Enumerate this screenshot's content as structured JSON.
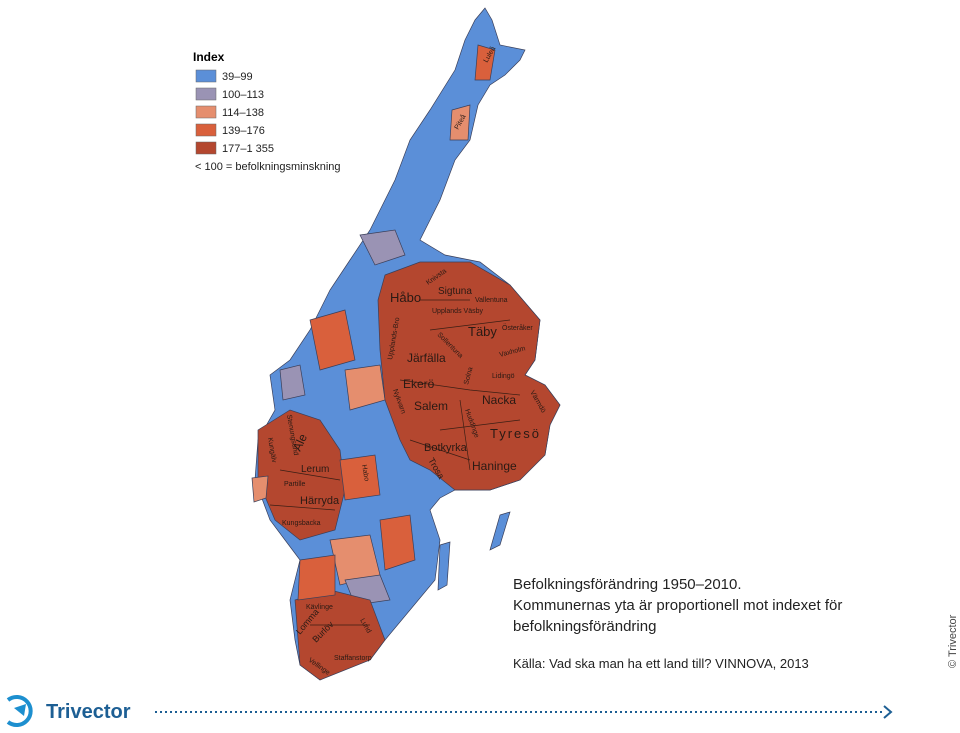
{
  "legend": {
    "title": "Index",
    "items": [
      {
        "label": "39–99",
        "color": "#5b8fd8"
      },
      {
        "label": "100–113",
        "color": "#9a93b4"
      },
      {
        "label": "114–138",
        "color": "#e58e6e"
      },
      {
        "label": "139–176",
        "color": "#d9603c"
      },
      {
        "label": "177–1 355",
        "color": "#b4472f"
      }
    ],
    "note": "< 100 = befolkningsminskning"
  },
  "map": {
    "labels": [
      "Luleå",
      "Piteå",
      "Knivsta",
      "Håbo",
      "Sigtuna",
      "Vallentuna",
      "Upplands Väsby",
      "Täby",
      "Österåker",
      "Upplands-Bro",
      "Sollentuna",
      "Järfälla",
      "Vaxholm",
      "Solna",
      "Lidingö",
      "Ekerö",
      "Värmdö",
      "Nacka",
      "Salem",
      "Nykvarn",
      "Huddinge",
      "Tyresö",
      "Botkyrka",
      "Haninge",
      "Trosa",
      "Stenungsund",
      "Kungälv",
      "Ale",
      "Lerum",
      "Partille",
      "Härryda",
      "Kungsbacka",
      "Habo",
      "Kävlinge",
      "Lomma",
      "Burlöv",
      "Lund",
      "Staffanstorp",
      "Vellinge"
    ]
  },
  "caption": {
    "lines": [
      "Befolkningsförändring 1950–2010.",
      "Kommunernas yta är proportionell mot indexet för",
      "befolkningsförändring"
    ],
    "source": "Källa: Vad ska man ha ett land till? VINNOVA, 2013"
  },
  "copyright": "© Trivector",
  "logo": "Trivector"
}
